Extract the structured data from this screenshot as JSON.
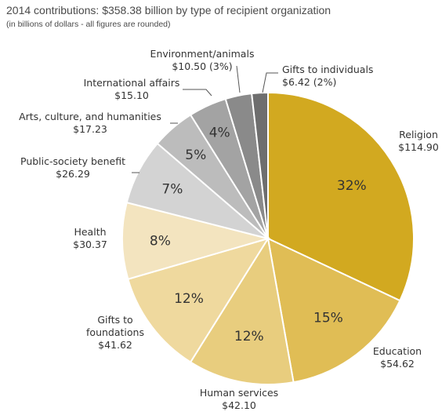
{
  "chart_data": {
    "type": "pie",
    "title": "2014 contributions: $358.38 billion by type of recipient organization",
    "subtitle": "(in billions of dollars - all figures are rounded)",
    "total": 358.38,
    "slices": [
      {
        "name": "Religion",
        "value_label": "$114.90",
        "value": 114.9,
        "percent_label": "32%",
        "color": "#d2a920"
      },
      {
        "name": "Education",
        "value_label": "$54.62",
        "value": 54.62,
        "percent_label": "15%",
        "color": "#e0bd55"
      },
      {
        "name": "Human services",
        "value_label": "$42.10",
        "value": 42.1,
        "percent_label": "12%",
        "color": "#e8cd7e"
      },
      {
        "name": "Gifts to foundations",
        "name_lines": [
          "Gifts to",
          "foundations"
        ],
        "value_label": "$41.62",
        "value": 41.62,
        "percent_label": "12%",
        "color": "#efd99e"
      },
      {
        "name": "Health",
        "value_label": "$30.37",
        "value": 30.37,
        "percent_label": "8%",
        "color": "#f3e4bf"
      },
      {
        "name": "Public-society benefit",
        "value_label": "$26.29",
        "value": 26.29,
        "percent_label": "7%",
        "color": "#d3d3d3"
      },
      {
        "name": "Arts, culture, and humanities",
        "value_label": "$17.23",
        "value": 17.23,
        "percent_label": "5%",
        "color": "#bcbcbc"
      },
      {
        "name": "International affairs",
        "value_label": "$15.10",
        "value": 15.1,
        "percent_label": "4%",
        "color": "#a3a3a3"
      },
      {
        "name": "Environment/animals",
        "value_label": "$10.50 (3%)",
        "value": 10.5,
        "percent_label": "",
        "color": "#8a8a8a"
      },
      {
        "name": "Gifts to individuals",
        "value_label": "$6.42 (2%)",
        "value": 6.42,
        "percent_label": "",
        "color": "#6e6e6e"
      }
    ]
  }
}
